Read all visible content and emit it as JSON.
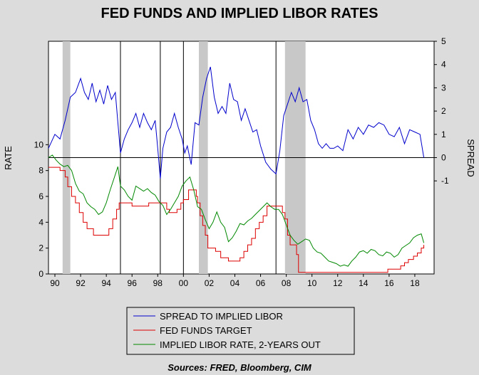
{
  "chart_data": {
    "type": "line",
    "title": "FED FUNDS AND IMPLIED LIBOR RATES",
    "ylabel_left": "RATE",
    "ylabel_right": "SPREAD",
    "source": "Sources:  FRED, Bloomberg, CIM",
    "xlim": [
      1989.5,
      2019.5
    ],
    "ylim_left": [
      0,
      18
    ],
    "ylim_right": [
      -5,
      5
    ],
    "x_ticks": [
      {
        "value": 1990,
        "label": "90"
      },
      {
        "value": 1992,
        "label": "92"
      },
      {
        "value": 1994,
        "label": "94"
      },
      {
        "value": 1996,
        "label": "96"
      },
      {
        "value": 1998,
        "label": "98"
      },
      {
        "value": 2000,
        "label": "00"
      },
      {
        "value": 2002,
        "label": "02"
      },
      {
        "value": 2004,
        "label": "04"
      },
      {
        "value": 2006,
        "label": "06"
      },
      {
        "value": 2008,
        "label": "08"
      },
      {
        "value": 2010,
        "label": "10"
      },
      {
        "value": 2012,
        "label": "12"
      },
      {
        "value": 2014,
        "label": "14"
      },
      {
        "value": 2016,
        "label": "16"
      },
      {
        "value": 2018,
        "label": "18"
      }
    ],
    "y_left_ticks": [
      {
        "value": 0,
        "label": "0"
      },
      {
        "value": 2,
        "label": "2"
      },
      {
        "value": 4,
        "label": "4"
      },
      {
        "value": 6,
        "label": "6"
      },
      {
        "value": 8,
        "label": "8"
      },
      {
        "value": 10,
        "label": "10"
      }
    ],
    "y_right_ticks": [
      {
        "value": -1,
        "label": "-1"
      },
      {
        "value": 0,
        "label": "0"
      },
      {
        "value": 1,
        "label": "1"
      },
      {
        "value": 2,
        "label": "2"
      },
      {
        "value": 3,
        "label": "3"
      },
      {
        "value": 4,
        "label": "4"
      },
      {
        "value": 5,
        "label": "5"
      }
    ],
    "zero_line_right": 0,
    "recessions": [
      [
        1990.6,
        1991.2
      ],
      [
        2001.2,
        2001.9
      ],
      [
        2007.9,
        2009.5
      ]
    ],
    "vertical_markers": [
      1995.1,
      1998.2,
      2000.0,
      2007.2
    ],
    "series": [
      {
        "name": "SPREAD TO IMPLIED LIBOR",
        "color": "#0000cc",
        "axis": "right",
        "x": [
          1989.5,
          1990.0,
          1990.4,
          1990.8,
          1991.2,
          1991.6,
          1992.0,
          1992.3,
          1992.6,
          1992.9,
          1993.2,
          1993.5,
          1993.8,
          1994.1,
          1994.4,
          1994.7,
          1994.9,
          1995.1,
          1995.4,
          1995.7,
          1996.0,
          1996.3,
          1996.6,
          1996.9,
          1997.2,
          1997.5,
          1997.8,
          1998.0,
          1998.2,
          1998.4,
          1998.7,
          1999.0,
          1999.3,
          1999.6,
          1999.9,
          2000.1,
          2000.3,
          2000.6,
          2000.9,
          2001.2,
          2001.5,
          2001.8,
          2002.1,
          2002.4,
          2002.7,
          2003.0,
          2003.3,
          2003.6,
          2003.9,
          2004.2,
          2004.5,
          2004.8,
          2005.1,
          2005.4,
          2005.7,
          2006.0,
          2006.4,
          2006.8,
          2007.2,
          2007.5,
          2007.8,
          2008.1,
          2008.4,
          2008.7,
          2009.0,
          2009.3,
          2009.6,
          2009.9,
          2010.2,
          2010.5,
          2010.8,
          2011.1,
          2011.4,
          2011.7,
          2012.0,
          2012.4,
          2012.8,
          2013.2,
          2013.6,
          2014.0,
          2014.4,
          2014.8,
          2015.2,
          2015.6,
          2016.0,
          2016.4,
          2016.8,
          2017.2,
          2017.6,
          2018.0,
          2018.4,
          2018.7
        ],
        "values": [
          0.4,
          1.0,
          0.8,
          1.6,
          2.6,
          2.8,
          3.4,
          2.8,
          2.5,
          3.2,
          2.4,
          2.9,
          2.3,
          3.1,
          2.5,
          2.8,
          1.5,
          0.2,
          0.8,
          1.2,
          1.5,
          1.9,
          1.3,
          1.9,
          1.5,
          1.2,
          1.6,
          0.4,
          -0.9,
          0.4,
          1.1,
          1.3,
          1.9,
          1.3,
          0.8,
          0.2,
          0.5,
          -0.3,
          1.5,
          1.4,
          2.6,
          3.4,
          3.9,
          2.6,
          1.9,
          2.2,
          1.9,
          3.2,
          2.5,
          2.4,
          1.6,
          2.1,
          1.6,
          1.1,
          1.2,
          0.5,
          -0.2,
          -0.5,
          -0.7,
          0.3,
          1.8,
          2.3,
          2.8,
          2.4,
          3.0,
          2.4,
          2.5,
          1.6,
          1.2,
          0.6,
          0.4,
          0.6,
          0.4,
          0.4,
          0.5,
          0.3,
          1.2,
          0.8,
          1.3,
          1.0,
          1.4,
          1.3,
          1.5,
          1.4,
          1.0,
          0.9,
          1.3,
          0.6,
          1.2,
          1.1,
          1.0,
          0.0
        ]
      },
      {
        "name": "FED FUNDS TARGET",
        "color": "#dd0000",
        "axis": "left",
        "x": [
          1989.5,
          1990.0,
          1990.4,
          1990.8,
          1991.0,
          1991.3,
          1991.6,
          1991.9,
          1992.2,
          1992.5,
          1993.0,
          1994.0,
          1994.2,
          1994.5,
          1994.8,
          1995.0,
          1995.5,
          1996.0,
          1997.0,
          1997.3,
          1998.0,
          1998.7,
          1998.9,
          1999.0,
          1999.5,
          1999.8,
          2000.0,
          2000.4,
          2001.0,
          2001.1,
          2001.3,
          2001.5,
          2001.7,
          2001.9,
          2002.5,
          2002.9,
          2003.5,
          2004.0,
          2004.4,
          2004.7,
          2005.0,
          2005.3,
          2005.6,
          2005.9,
          2006.2,
          2006.5,
          2007.5,
          2007.7,
          2007.9,
          2008.1,
          2008.3,
          2008.8,
          2008.95,
          2015.9,
          2016.9,
          2017.2,
          2017.5,
          2017.9,
          2018.2,
          2018.5,
          2018.7
        ],
        "values": [
          8.25,
          8.25,
          8.0,
          7.5,
          6.75,
          6.0,
          5.5,
          4.75,
          4.0,
          3.5,
          3.0,
          3.0,
          3.5,
          4.25,
          5.0,
          5.5,
          5.5,
          5.25,
          5.25,
          5.5,
          5.5,
          5.0,
          4.75,
          4.75,
          5.0,
          5.5,
          5.75,
          6.5,
          6.0,
          5.5,
          4.5,
          3.75,
          3.0,
          2.0,
          1.75,
          1.25,
          1.0,
          1.0,
          1.25,
          1.75,
          2.25,
          2.75,
          3.5,
          4.0,
          4.5,
          5.25,
          5.25,
          4.75,
          4.25,
          3.0,
          2.25,
          1.5,
          0.125,
          0.375,
          0.625,
          0.875,
          1.125,
          1.375,
          1.625,
          2.0,
          2.25
        ]
      },
      {
        "name": "IMPLIED LIBOR RATE, 2-YEARS OUT",
        "color": "#008800",
        "axis": "left",
        "x": [
          1989.5,
          1989.8,
          1990.1,
          1990.4,
          1990.7,
          1991.0,
          1991.3,
          1991.6,
          1991.9,
          1992.2,
          1992.5,
          1992.8,
          1993.1,
          1993.4,
          1993.7,
          1994.0,
          1994.3,
          1994.6,
          1994.9,
          1995.1,
          1995.4,
          1995.7,
          1996.0,
          1996.3,
          1996.6,
          1996.9,
          1997.2,
          1997.5,
          1997.8,
          1998.1,
          1998.4,
          1998.7,
          1999.0,
          1999.3,
          1999.6,
          1999.9,
          2000.2,
          2000.5,
          2000.8,
          2001.1,
          2001.4,
          2001.7,
          2002.0,
          2002.3,
          2002.6,
          2002.9,
          2003.2,
          2003.5,
          2003.8,
          2004.1,
          2004.4,
          2004.7,
          2005.0,
          2005.3,
          2005.6,
          2005.9,
          2006.2,
          2006.5,
          2006.8,
          2007.1,
          2007.4,
          2007.7,
          2008.0,
          2008.3,
          2008.6,
          2008.9,
          2009.2,
          2009.5,
          2009.8,
          2010.1,
          2010.4,
          2010.7,
          2011.0,
          2011.3,
          2011.6,
          2011.9,
          2012.2,
          2012.5,
          2012.8,
          2013.1,
          2013.4,
          2013.7,
          2014.0,
          2014.3,
          2014.6,
          2014.9,
          2015.2,
          2015.5,
          2015.8,
          2016.1,
          2016.4,
          2016.7,
          2017.0,
          2017.3,
          2017.6,
          2017.9,
          2018.2,
          2018.5,
          2018.7
        ],
        "values": [
          9.0,
          9.2,
          8.8,
          8.5,
          8.3,
          8.4,
          8.0,
          7.0,
          6.4,
          6.2,
          5.5,
          5.2,
          5.0,
          4.6,
          4.8,
          5.5,
          6.5,
          7.4,
          8.3,
          6.8,
          6.5,
          6.0,
          5.7,
          6.8,
          6.6,
          6.4,
          6.6,
          6.3,
          6.1,
          5.6,
          5.3,
          4.6,
          5.0,
          5.5,
          6.0,
          6.8,
          7.2,
          7.5,
          6.5,
          5.2,
          5.0,
          4.2,
          3.5,
          4.0,
          4.8,
          4.0,
          3.6,
          2.5,
          2.8,
          3.3,
          3.9,
          3.8,
          4.1,
          4.3,
          4.6,
          4.9,
          5.2,
          5.5,
          5.2,
          5.0,
          5.0,
          4.6,
          3.8,
          3.0,
          2.6,
          2.3,
          2.5,
          2.7,
          2.6,
          2.0,
          1.7,
          1.6,
          1.3,
          1.0,
          0.9,
          0.8,
          0.6,
          0.7,
          0.6,
          1.0,
          1.3,
          1.7,
          1.8,
          1.6,
          1.9,
          1.8,
          1.5,
          1.4,
          1.7,
          1.6,
          1.3,
          1.5,
          2.0,
          2.2,
          2.4,
          2.8,
          3.0,
          3.1,
          2.4
        ]
      }
    ],
    "legend": {
      "position": "bottom-center",
      "entries": [
        "SPREAD TO IMPLIED LIBOR",
        "FED FUNDS TARGET",
        "IMPLIED LIBOR RATE, 2-YEARS OUT"
      ]
    }
  }
}
